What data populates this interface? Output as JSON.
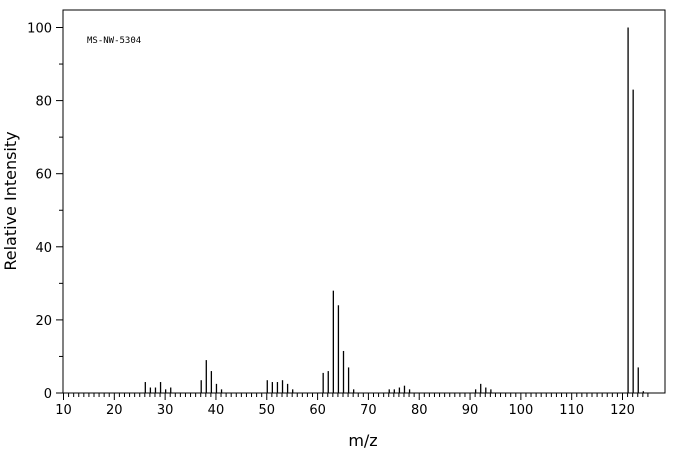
{
  "chart_data": {
    "type": "bar",
    "title": "",
    "annotation": "MS-NW-5304",
    "xlabel": "m/z",
    "ylabel": "Relative Intensity",
    "xlim": [
      10,
      127
    ],
    "ylim": [
      0,
      105
    ],
    "x_ticks": [
      10,
      20,
      30,
      40,
      50,
      60,
      70,
      80,
      90,
      100,
      110,
      120
    ],
    "y_ticks": [
      0,
      20,
      40,
      60,
      80,
      100
    ],
    "grid": false,
    "legend": "none",
    "colors": {
      "bars": "#000000",
      "axes": "#000000",
      "background": "#ffffff"
    },
    "peaks": [
      {
        "x": 26,
        "y": 3
      },
      {
        "x": 27,
        "y": 1.5
      },
      {
        "x": 28,
        "y": 1.5
      },
      {
        "x": 29,
        "y": 3
      },
      {
        "x": 30,
        "y": 1
      },
      {
        "x": 31,
        "y": 1.5
      },
      {
        "x": 37,
        "y": 3.5
      },
      {
        "x": 38,
        "y": 9
      },
      {
        "x": 39,
        "y": 6
      },
      {
        "x": 40,
        "y": 2.5
      },
      {
        "x": 41,
        "y": 1
      },
      {
        "x": 50,
        "y": 3.5
      },
      {
        "x": 51,
        "y": 3
      },
      {
        "x": 52,
        "y": 3
      },
      {
        "x": 53,
        "y": 3.5
      },
      {
        "x": 54,
        "y": 2.5
      },
      {
        "x": 55,
        "y": 1
      },
      {
        "x": 61,
        "y": 5.5
      },
      {
        "x": 62,
        "y": 6
      },
      {
        "x": 63,
        "y": 28
      },
      {
        "x": 64,
        "y": 24
      },
      {
        "x": 65,
        "y": 11.5
      },
      {
        "x": 66,
        "y": 7
      },
      {
        "x": 67,
        "y": 1
      },
      {
        "x": 74,
        "y": 1
      },
      {
        "x": 75,
        "y": 1
      },
      {
        "x": 76,
        "y": 1.5
      },
      {
        "x": 77,
        "y": 2
      },
      {
        "x": 78,
        "y": 1
      },
      {
        "x": 91,
        "y": 1
      },
      {
        "x": 92,
        "y": 2.5
      },
      {
        "x": 93,
        "y": 1.5
      },
      {
        "x": 94,
        "y": 1
      },
      {
        "x": 121,
        "y": 100
      },
      {
        "x": 122,
        "y": 83
      },
      {
        "x": 123,
        "y": 7
      },
      {
        "x": 124,
        "y": 0.5
      }
    ]
  }
}
